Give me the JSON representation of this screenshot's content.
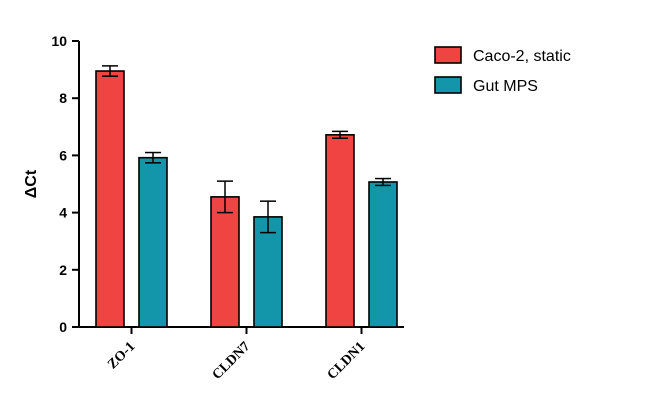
{
  "chart_data": {
    "type": "bar",
    "categories": [
      "ZO-1",
      "CLDN7",
      "CLDN1"
    ],
    "series": [
      {
        "name": "Caco-2, static",
        "color": "#f04443",
        "values": [
          8.95,
          4.55,
          6.72
        ],
        "errors": [
          0.18,
          0.55,
          0.12
        ]
      },
      {
        "name": "Gut MPS",
        "color": "#1496aa",
        "values": [
          5.92,
          3.85,
          5.07
        ],
        "errors": [
          0.18,
          0.55,
          0.12
        ]
      }
    ],
    "xlabel": "",
    "ylabel": "ΔCt",
    "ylim": [
      0,
      10
    ],
    "yticks": [
      0,
      2,
      4,
      6,
      8,
      10
    ],
    "grid": false,
    "legend_position": "top-right"
  }
}
